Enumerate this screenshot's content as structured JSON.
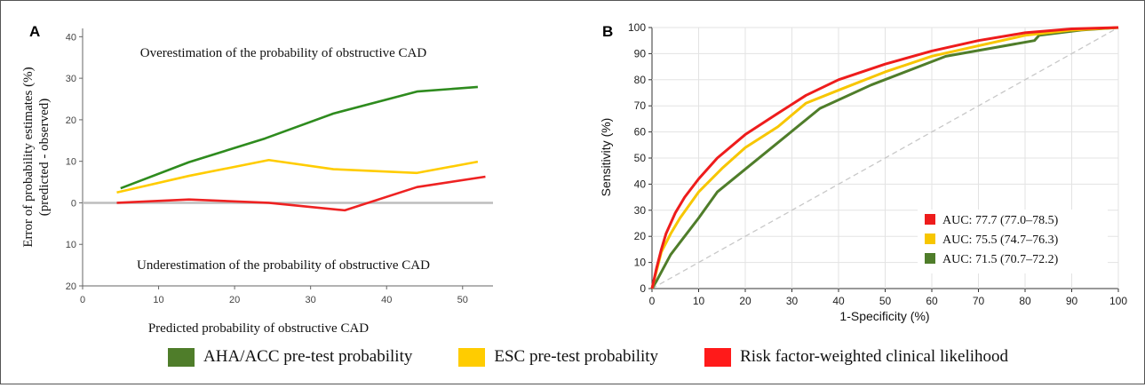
{
  "colors": {
    "aha": "#2e8b1e",
    "esc": "#ffcc00",
    "rf": "#ee2222",
    "aha_roc": "#4f7d2a",
    "esc_roc": "#f7c600",
    "rf_roc": "#ee1c1c"
  },
  "legend": {
    "items": [
      {
        "label": "AHA/ACC pre-test probability",
        "color": "#4f7d2a"
      },
      {
        "label": "ESC pre-test probability",
        "color": "#ffcc00"
      },
      {
        "label": "Risk factor-weighted clinical likelihood",
        "color": "#ff1a1a"
      }
    ]
  },
  "chart_data": [
    {
      "panel": "A",
      "type": "line",
      "xlabel": "Predicted probability of obstructive CAD",
      "ylabel_line1": "Error of probability estimates (%)",
      "ylabel_line2": "(predicted - observed)",
      "xlim": [
        0,
        54
      ],
      "ylim": [
        -20,
        42
      ],
      "x_ticks": [
        "0",
        "10",
        "20",
        "30",
        "40",
        "50"
      ],
      "y_ticks": [
        {
          "value": 40,
          "label": "40"
        },
        {
          "value": 30,
          "label": "30"
        },
        {
          "value": 20,
          "label": "20"
        },
        {
          "value": 10,
          "label": "10"
        },
        {
          "value": 0,
          "label": "0"
        },
        {
          "value": -10,
          "label": "10"
        },
        {
          "value": -20,
          "label": "20"
        }
      ],
      "annotations": {
        "over": "Overestimation of the probability of obstructive CAD",
        "under": "Underestimation of the probability of obstructive CAD"
      },
      "series": [
        {
          "key": "aha",
          "x": [
            5,
            14,
            24,
            33,
            44,
            52
          ],
          "y": [
            3.5,
            9.8,
            15.5,
            21.5,
            26.8,
            27.9
          ]
        },
        {
          "key": "esc",
          "x": [
            4.5,
            14,
            24.5,
            33,
            44,
            52
          ],
          "y": [
            2.5,
            6.5,
            10.3,
            8.1,
            7.2,
            9.9
          ]
        },
        {
          "key": "rf",
          "x": [
            4.5,
            14,
            24.5,
            34.5,
            44,
            53
          ],
          "y": [
            0.0,
            0.8,
            0.0,
            -1.8,
            3.8,
            6.3
          ]
        }
      ]
    },
    {
      "panel": "B",
      "type": "line",
      "xlabel": "1-Specificity (%)",
      "ylabel": "Sensitivity (%)",
      "xlim": [
        0,
        100
      ],
      "ylim": [
        0,
        100
      ],
      "x_ticks": [
        "0",
        "10",
        "20",
        "30",
        "40",
        "50",
        "60",
        "70",
        "80",
        "90",
        "100"
      ],
      "y_ticks": [
        "0",
        "10",
        "20",
        "30",
        "40",
        "50",
        "60",
        "70",
        "80",
        "90",
        "100"
      ],
      "grid": true,
      "legend_position": "bottom-right",
      "series": [
        {
          "key": "rf_roc",
          "auc": "AUC: 77.7 (77.0–78.5)",
          "x": [
            0,
            1,
            2,
            3,
            5,
            7,
            10,
            14,
            20,
            26,
            33,
            40,
            50,
            60,
            70,
            80,
            90,
            100
          ],
          "y": [
            0,
            8,
            15,
            21,
            29,
            35,
            42,
            50,
            59,
            66,
            74,
            80,
            86,
            91,
            95,
            98,
            99.5,
            100
          ]
        },
        {
          "key": "esc_roc",
          "auc": "AUC: 75.5 (74.7–76.3)",
          "x": [
            0,
            1,
            2,
            4,
            6,
            10,
            15,
            20,
            27,
            33,
            40,
            50,
            60,
            70,
            80,
            90,
            100
          ],
          "y": [
            0,
            7,
            14,
            21,
            27,
            37,
            46,
            54,
            62,
            71,
            76,
            83,
            89,
            93,
            97,
            99,
            100
          ]
        },
        {
          "key": "aha_roc",
          "auc": "AUC: 71.5 (70.7–72.2)",
          "x": [
            0,
            1,
            4,
            10,
            14,
            25,
            36,
            47,
            63,
            82,
            83,
            92,
            100
          ],
          "y": [
            0,
            3,
            13,
            27,
            37,
            53,
            69,
            78,
            89,
            95,
            97,
            99,
            100
          ]
        }
      ],
      "reference_line": {
        "x": [
          0,
          100
        ],
        "y": [
          0,
          100
        ]
      }
    }
  ]
}
